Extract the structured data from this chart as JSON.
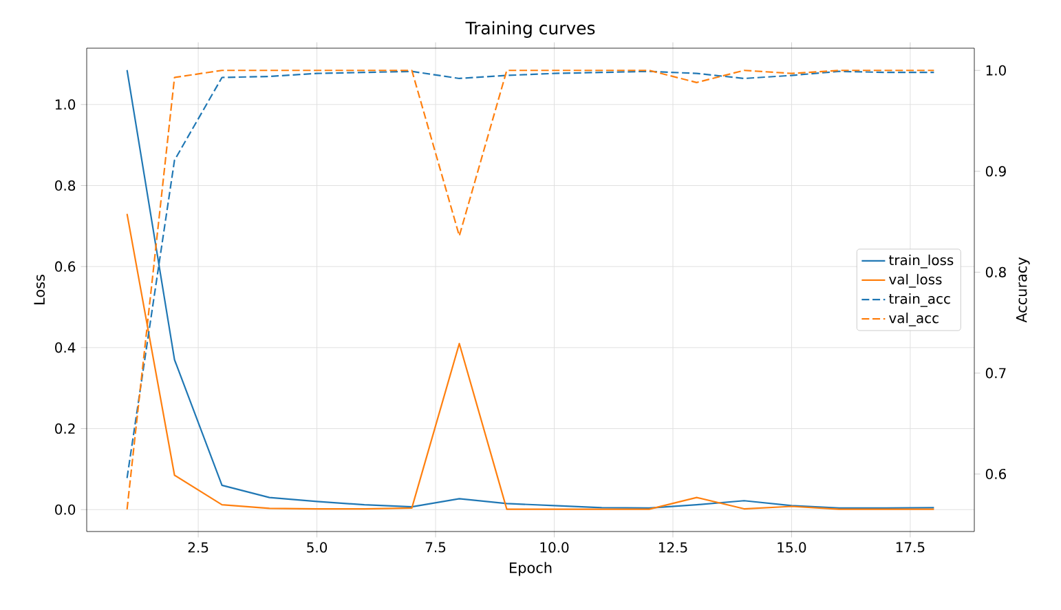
{
  "chart_data": {
    "type": "line",
    "title": "Training curves",
    "xlabel": "Epoch",
    "ylabel": "Loss",
    "y2label": "Accuracy",
    "x": [
      1,
      2,
      3,
      4,
      5,
      6,
      7,
      8,
      9,
      10,
      11,
      12,
      13,
      14,
      15,
      16,
      17,
      18
    ],
    "series": [
      {
        "name": "train_loss",
        "color": "#1f77b4",
        "line_style": "solid",
        "values": [
          1.085,
          0.37,
          0.06,
          0.03,
          0.02,
          0.012,
          0.007,
          0.027,
          0.015,
          0.01,
          0.005,
          0.004,
          0.012,
          0.022,
          0.01,
          0.004,
          0.004,
          0.005
        ]
      },
      {
        "name": "val_loss",
        "color": "#ff7f0e",
        "line_style": "solid",
        "values": [
          0.73,
          0.085,
          0.012,
          0.003,
          0.002,
          0.002,
          0.004,
          0.41,
          0.001,
          0.001,
          0.001,
          0.001,
          0.03,
          0.002,
          0.008,
          0.001,
          0.001,
          0.001
        ]
      },
      {
        "name": "train_acc",
        "color": "#1f77b4",
        "line_style": "dashed",
        "axis": "y2",
        "values": [
          0.596,
          0.911,
          0.993,
          0.994,
          0.997,
          0.998,
          0.999,
          0.992,
          0.995,
          0.997,
          0.998,
          0.999,
          0.997,
          0.992,
          0.995,
          0.999,
          0.998,
          0.998
        ]
      },
      {
        "name": "val_acc",
        "color": "#ff7f0e",
        "line_style": "dashed",
        "axis": "y2",
        "values": [
          0.565,
          0.993,
          1.0,
          1.0,
          1.0,
          1.0,
          1.0,
          0.836,
          1.0,
          1.0,
          1.0,
          1.0,
          0.988,
          1.0,
          0.997,
          1.0,
          1.0,
          1.0
        ]
      }
    ],
    "xlim": [
      0.15,
      18.85
    ],
    "xticks": [
      2.5,
      {
        "value": 5,
        "label": "5.0"
      },
      7.5,
      {
        "value": 10,
        "label": "10.0"
      },
      12.5,
      {
        "value": 15,
        "label": "15.0"
      },
      17.5
    ],
    "ylim": [
      -0.054,
      1.139
    ],
    "yticks": [
      {
        "value": 0,
        "label": "0.0"
      },
      0.2,
      0.4,
      0.6,
      0.8,
      {
        "value": 1,
        "label": "1.0"
      }
    ],
    "y2lim": [
      0.543,
      1.022
    ],
    "y2ticks": [
      0.6,
      0.7,
      0.8,
      0.9,
      {
        "value": 1,
        "label": "1.0"
      }
    ],
    "grid": true,
    "legend": "right",
    "marker": "none"
  }
}
